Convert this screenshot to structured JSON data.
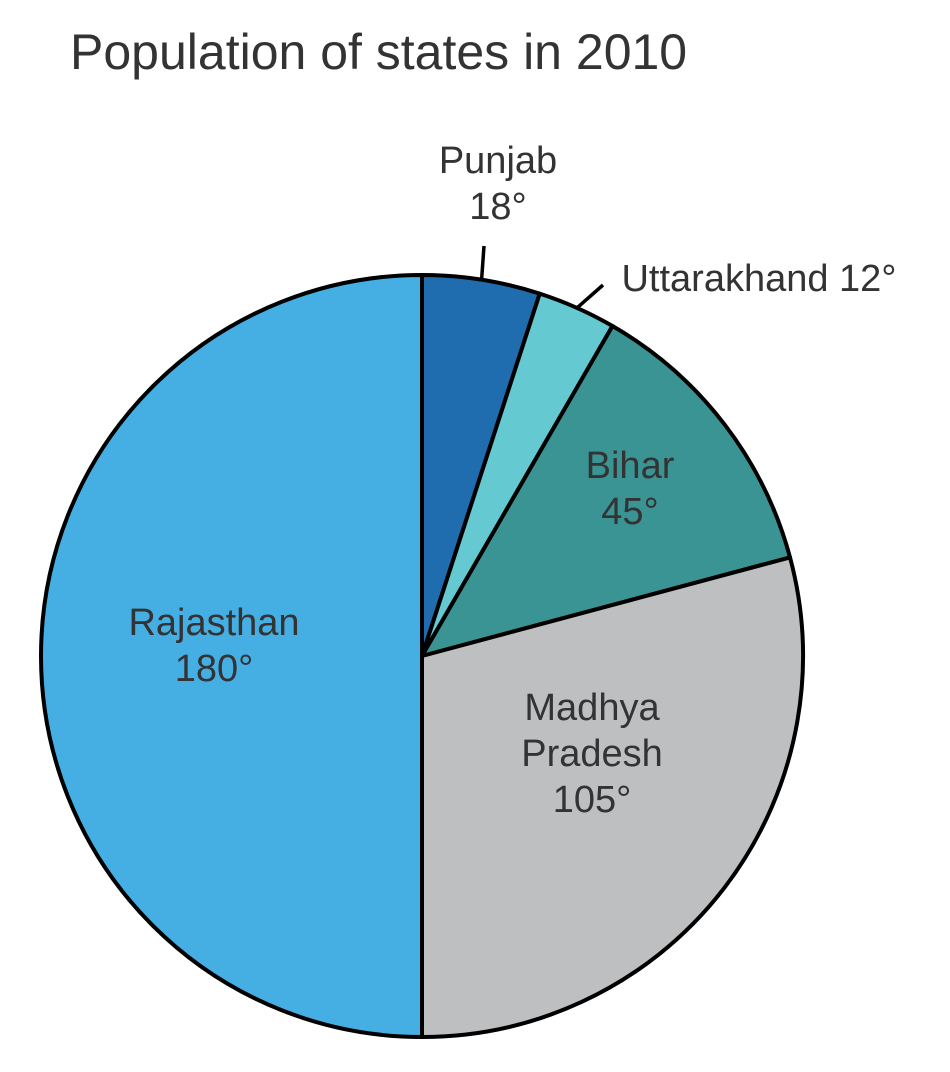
{
  "chart_data": {
    "type": "pie",
    "title": "Population of states in 2010",
    "unit": "°",
    "slices": [
      {
        "name": "Punjab",
        "label_lines": [
          "Punjab",
          "18°"
        ],
        "value": 18,
        "color": "#1f6cae"
      },
      {
        "name": "Uttarakhand",
        "label_lines": [
          "Uttarakhand 12°"
        ],
        "value": 12,
        "color": "#65c9d2"
      },
      {
        "name": "Bihar",
        "label_lines": [
          "Bihar",
          "45°"
        ],
        "value": 45,
        "color": "#3b9494"
      },
      {
        "name": "Madhya Pradesh",
        "label_lines": [
          "Madhya",
          "Pradesh",
          "105°"
        ],
        "value": 105,
        "color": "#bebfc1"
      },
      {
        "name": "Rajasthan",
        "label_lines": [
          "Rajasthan",
          "180°"
        ],
        "value": 180,
        "color": "#45aee3"
      }
    ],
    "start_angle": 0,
    "direction": "clockwise",
    "stroke_color": "#000000",
    "label_color": "#333333"
  }
}
